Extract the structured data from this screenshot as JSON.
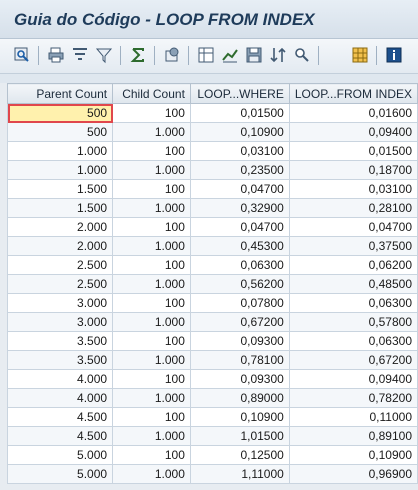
{
  "window": {
    "title": "Guia do Código - LOOP FROM INDEX"
  },
  "toolbar": {
    "icons": [
      "details-icon",
      "print-icon",
      "filter-icon",
      "funnel-icon",
      "sum-icon",
      "export-icon",
      "layout-icon",
      "graphic-icon",
      "save-icon",
      "sort-icon",
      "find-icon",
      "grid-icon",
      "info-icon"
    ]
  },
  "table": {
    "columns": [
      "Parent Count",
      "Child Count",
      "LOOP...WHERE",
      "LOOP...FROM INDEX"
    ],
    "rows": [
      [
        "500",
        "100",
        "0,01500",
        "0,01600"
      ],
      [
        "500",
        "1.000",
        "0,10900",
        "0,09400"
      ],
      [
        "1.000",
        "100",
        "0,03100",
        "0,01500"
      ],
      [
        "1.000",
        "1.000",
        "0,23500",
        "0,18700"
      ],
      [
        "1.500",
        "100",
        "0,04700",
        "0,03100"
      ],
      [
        "1.500",
        "1.000",
        "0,32900",
        "0,28100"
      ],
      [
        "2.000",
        "100",
        "0,04700",
        "0,04700"
      ],
      [
        "2.000",
        "1.000",
        "0,45300",
        "0,37500"
      ],
      [
        "2.500",
        "100",
        "0,06300",
        "0,06200"
      ],
      [
        "2.500",
        "1.000",
        "0,56200",
        "0,48500"
      ],
      [
        "3.000",
        "100",
        "0,07800",
        "0,06300"
      ],
      [
        "3.000",
        "1.000",
        "0,67200",
        "0,57800"
      ],
      [
        "3.500",
        "100",
        "0,09300",
        "0,06300"
      ],
      [
        "3.500",
        "1.000",
        "0,78100",
        "0,67200"
      ],
      [
        "4.000",
        "100",
        "0,09300",
        "0,09400"
      ],
      [
        "4.000",
        "1.000",
        "0,89000",
        "0,78200"
      ],
      [
        "4.500",
        "100",
        "0,10900",
        "0,11000"
      ],
      [
        "4.500",
        "1.000",
        "1,01500",
        "0,89100"
      ],
      [
        "5.000",
        "100",
        "0,12500",
        "0,10900"
      ],
      [
        "5.000",
        "1.000",
        "1,11000",
        "0,96900"
      ]
    ]
  },
  "colors": {
    "title": "#1e3b5a",
    "selection_fill": "#fff1ad",
    "selection_border": "#e0474c"
  }
}
